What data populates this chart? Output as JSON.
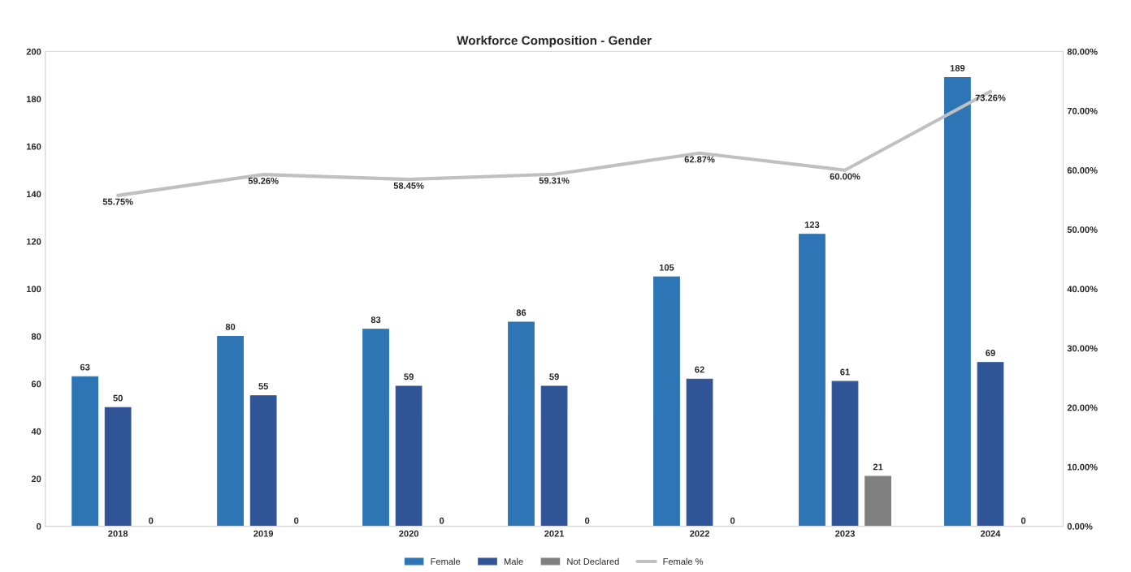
{
  "chart_data": {
    "type": "bar",
    "title": "Workforce Composition - Gender",
    "categories": [
      "2018",
      "2019",
      "2020",
      "2021",
      "2022",
      "2023",
      "2024"
    ],
    "series": [
      {
        "name": "Female",
        "color": "#2e75b6",
        "values": [
          63,
          80,
          83,
          86,
          105,
          123,
          189
        ],
        "value_labels": [
          "63",
          "80",
          "83",
          "86",
          "105",
          "123",
          "189"
        ]
      },
      {
        "name": "Male",
        "color": "#2f5597",
        "values": [
          50,
          55,
          59,
          59,
          62,
          61,
          69
        ],
        "value_labels": [
          "50",
          "55",
          "59",
          "59",
          "62",
          "61",
          "69"
        ]
      },
      {
        "name": "Not Declared",
        "color": "#808080",
        "values": [
          0,
          0,
          0,
          0,
          0,
          21,
          0
        ],
        "value_labels": [
          "0",
          "0",
          "0",
          "0",
          "0",
          "21",
          "0"
        ]
      },
      {
        "name": "Female %",
        "type": "line",
        "axis": "y2",
        "color": "#c0c0c0",
        "values": [
          55.75,
          59.26,
          58.45,
          59.31,
          62.87,
          60.0,
          73.26
        ],
        "value_labels": [
          "55.75%",
          "59.26%",
          "58.45%",
          "59.31%",
          "62.87%",
          "60.00%",
          "73.26%"
        ]
      }
    ],
    "ylim": [
      0,
      200
    ],
    "yticks": [
      0,
      20,
      40,
      60,
      80,
      100,
      120,
      140,
      160,
      180,
      200
    ],
    "y2lim": [
      0,
      80
    ],
    "y2ticks": [
      {
        "value": 0,
        "label": "0.00%"
      },
      {
        "value": 10,
        "label": "10.00%"
      },
      {
        "value": 20,
        "label": "20.00%"
      },
      {
        "value": 30,
        "label": "30.00%"
      },
      {
        "value": 40,
        "label": "40.00%"
      },
      {
        "value": 50,
        "label": "50.00%"
      },
      {
        "value": 60,
        "label": "60.00%"
      },
      {
        "value": 70,
        "label": "70.00%"
      },
      {
        "value": 80,
        "label": "80.00%"
      }
    ],
    "grid": false,
    "legend": "bottom"
  }
}
